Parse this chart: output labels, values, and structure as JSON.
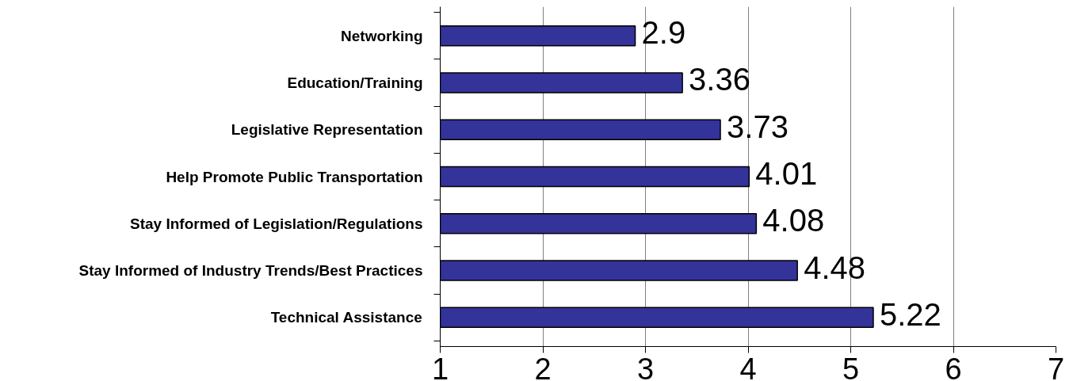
{
  "chart_data": {
    "type": "bar",
    "orientation": "horizontal",
    "categories": [
      "Networking",
      "Education/Training",
      "Legislative Representation",
      "Help Promote Public Transportation",
      "Stay Informed of Legislation/Regulations",
      "Stay Informed of Industry Trends/Best Practices",
      "Technical Assistance"
    ],
    "values": [
      2.9,
      3.36,
      3.73,
      4.01,
      4.08,
      4.48,
      5.22
    ],
    "color": "#333399",
    "xlim": [
      1,
      7
    ],
    "xticks": [
      1,
      2,
      3,
      4,
      5,
      6,
      7
    ],
    "grid": "x",
    "data_labels": true
  }
}
